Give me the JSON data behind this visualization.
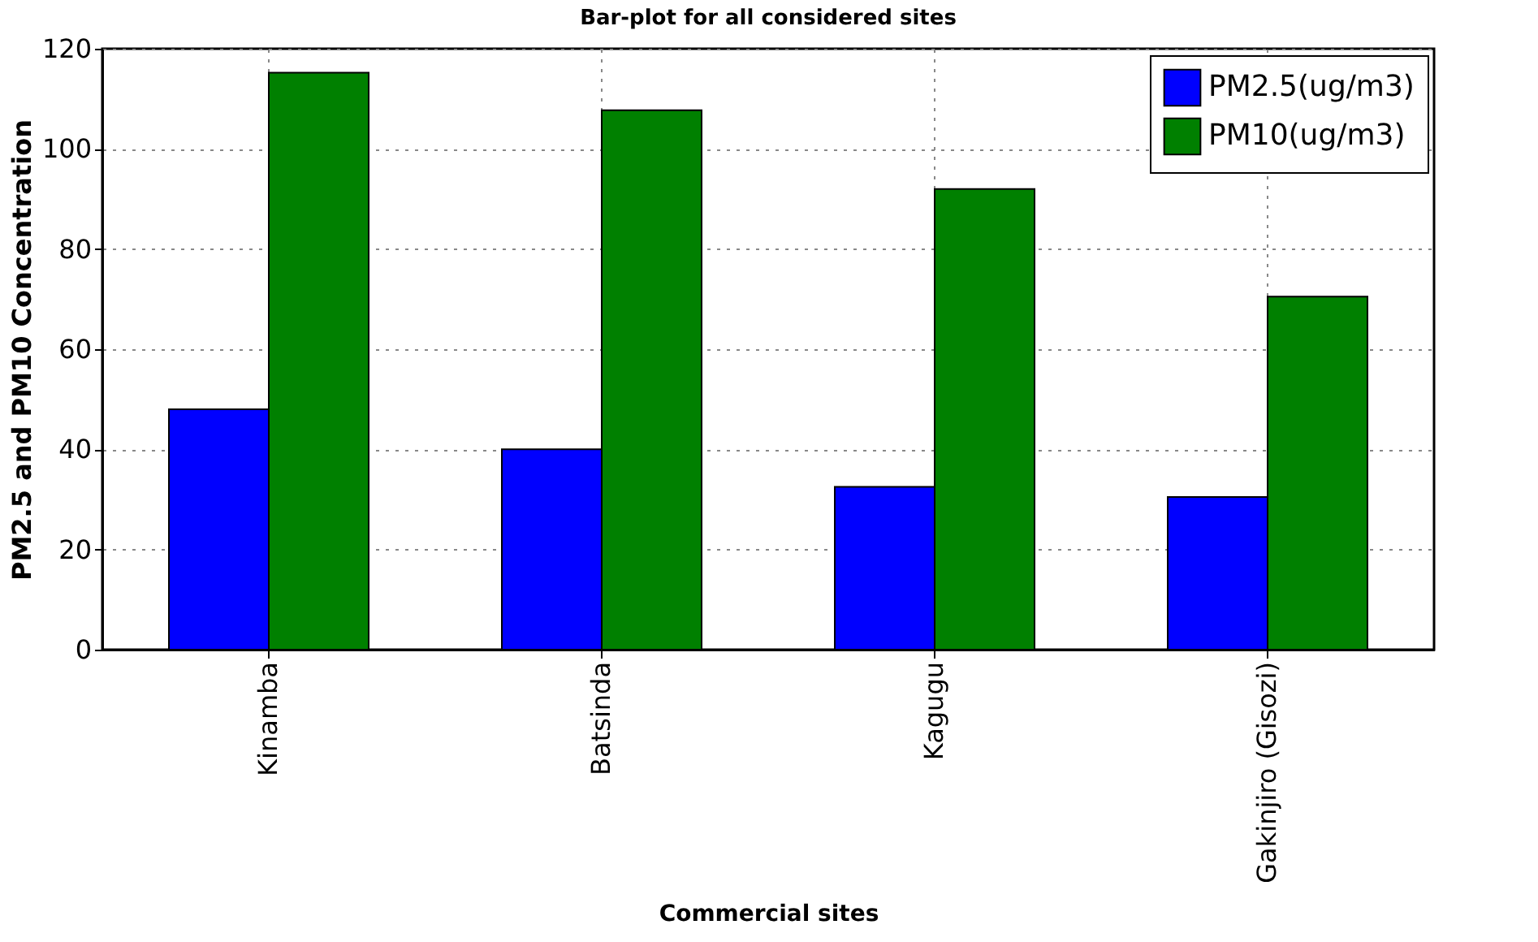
{
  "chart_data": {
    "type": "bar",
    "title": "Bar-plot for all considered sites",
    "xlabel": "Commercial sites",
    "ylabel": "PM2.5 and PM10 Concentration",
    "categories": [
      "Kinamba",
      "Batsinda",
      "Kagugu",
      "Gakinjiro (Gisozi)"
    ],
    "series": [
      {
        "name": "PM2.5(ug/m3)",
        "color": "#0000ff",
        "values": [
          48,
          40,
          32.5,
          30.5
        ]
      },
      {
        "name": "PM10(ug/m3)",
        "color": "#008000",
        "values": [
          115.2,
          107.7,
          92,
          70.5
        ]
      }
    ],
    "ylim": [
      0,
      120
    ],
    "yticks": [
      0,
      20,
      40,
      60,
      80,
      100,
      120
    ],
    "grid": true,
    "legend": "top right"
  }
}
